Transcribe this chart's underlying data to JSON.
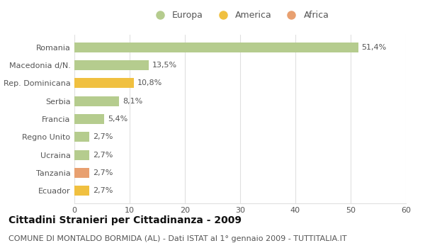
{
  "countries": [
    "Romania",
    "Macedonia d/N.",
    "Rep. Dominicana",
    "Serbia",
    "Francia",
    "Regno Unito",
    "Ucraina",
    "Tanzania",
    "Ecuador"
  ],
  "values": [
    51.4,
    13.5,
    10.8,
    8.1,
    5.4,
    2.7,
    2.7,
    2.7,
    2.7
  ],
  "labels": [
    "51,4%",
    "13,5%",
    "10,8%",
    "8,1%",
    "5,4%",
    "2,7%",
    "2,7%",
    "2,7%",
    "2,7%"
  ],
  "continents": [
    "Europa",
    "Europa",
    "America",
    "Europa",
    "Europa",
    "Europa",
    "Europa",
    "Africa",
    "America"
  ],
  "colors": {
    "Europa": "#b5cc8e",
    "America": "#f0c040",
    "Africa": "#e8a070"
  },
  "legend_items": [
    "Europa",
    "America",
    "Africa"
  ],
  "legend_colors": [
    "#b5cc8e",
    "#f0c040",
    "#e8a070"
  ],
  "xlim": [
    0,
    60
  ],
  "xticks": [
    0,
    10,
    20,
    30,
    40,
    50,
    60
  ],
  "title": "Cittadini Stranieri per Cittadinanza - 2009",
  "subtitle": "COMUNE DI MONTALDO BORMIDA (AL) - Dati ISTAT al 1° gennaio 2009 - TUTTITALIA.IT",
  "title_fontsize": 10,
  "subtitle_fontsize": 8,
  "bar_height": 0.55,
  "label_fontsize": 8,
  "ytick_fontsize": 8,
  "xtick_fontsize": 8,
  "background_color": "#ffffff",
  "grid_color": "#e0e0e0",
  "text_color": "#555555",
  "title_color": "#111111"
}
